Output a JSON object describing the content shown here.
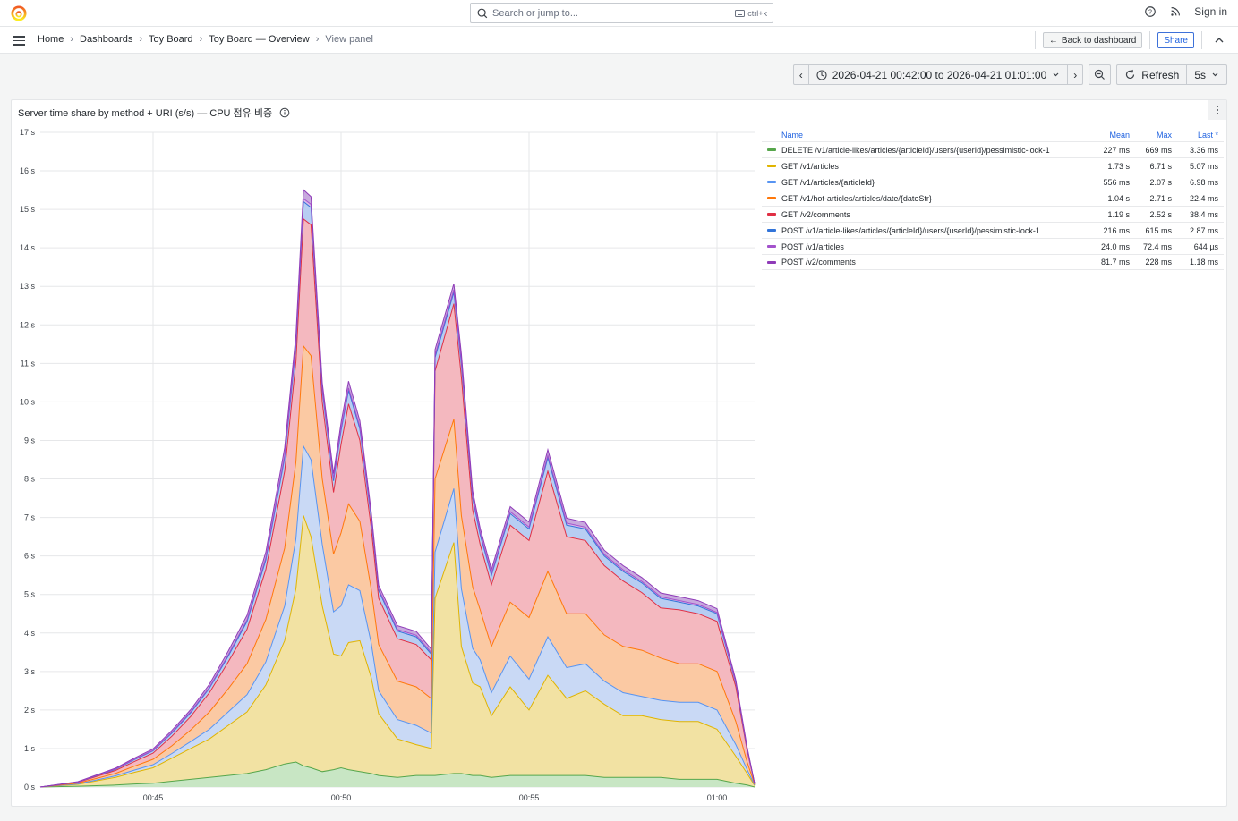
{
  "topbar": {
    "search_placeholder": "Search or jump to...",
    "search_shortcut": "ctrl+k",
    "sign_in": "Sign in"
  },
  "breadcrumbs": [
    "Home",
    "Dashboards",
    "Toy Board",
    "Toy Board — Overview",
    "View panel"
  ],
  "nav": {
    "back_label": "Back to dashboard",
    "share_label": "Share"
  },
  "time_picker": {
    "range": "2026-04-21 00:42:00 to 2026-04-21 01:01:00",
    "refresh_label": "Refresh",
    "refresh_interval": "5s"
  },
  "panel": {
    "title": "Server time share by method + URI (s/s) — CPU 점유 비중"
  },
  "legend": {
    "headers": {
      "name": "Name",
      "mean": "Mean",
      "max": "Max",
      "last": "Last *"
    },
    "rows": [
      {
        "name": "DELETE /v1/article-likes/articles/{articleId}/users/{userId}/pessimistic-lock-1",
        "color": "#56a64b",
        "mean": "227 ms",
        "max": "669 ms",
        "last": "3.36 ms"
      },
      {
        "name": "GET /v1/articles",
        "color": "#e0b400",
        "mean": "1.73 s",
        "max": "6.71 s",
        "last": "5.07 ms"
      },
      {
        "name": "GET /v1/articles/{articleId}",
        "color": "#5794f2",
        "mean": "556 ms",
        "max": "2.07 s",
        "last": "6.98 ms"
      },
      {
        "name": "GET /v1/hot-articles/articles/date/{dateStr}",
        "color": "#ff780a",
        "mean": "1.04 s",
        "max": "2.71 s",
        "last": "22.4 ms"
      },
      {
        "name": "GET /v2/comments",
        "color": "#e02f44",
        "mean": "1.19 s",
        "max": "2.52 s",
        "last": "38.4 ms"
      },
      {
        "name": "POST /v1/article-likes/articles/{articleId}/users/{userId}/pessimistic-lock-1",
        "color": "#3274d9",
        "mean": "216 ms",
        "max": "615 ms",
        "last": "2.87 ms"
      },
      {
        "name": "POST /v1/articles",
        "color": "#a352cc",
        "mean": "24.0 ms",
        "max": "72.4 ms",
        "last": "644 µs"
      },
      {
        "name": "POST /v2/comments",
        "color": "#8f3bb8",
        "mean": "81.7 ms",
        "max": "228 ms",
        "last": "1.18 ms"
      }
    ]
  },
  "chart_data": {
    "type": "area",
    "stacked": true,
    "x_unit": "minutes since 00:42",
    "xlim": [
      0,
      19
    ],
    "ylim": [
      0,
      17
    ],
    "yticks": [
      0,
      1,
      2,
      3,
      4,
      5,
      6,
      7,
      8,
      9,
      10,
      11,
      12,
      13,
      14,
      15,
      16,
      17
    ],
    "ytick_labels": [
      "0 s",
      "1 s",
      "2 s",
      "3 s",
      "4 s",
      "5 s",
      "6 s",
      "7 s",
      "8 s",
      "9 s",
      "10 s",
      "11 s",
      "12 s",
      "13 s",
      "14 s",
      "15 s",
      "16 s",
      "17 s"
    ],
    "xticks": [
      3,
      8,
      13,
      18
    ],
    "xtick_labels": [
      "00:45",
      "00:50",
      "00:55",
      "01:00"
    ],
    "grid": true,
    "legend_position": "right",
    "x": [
      0,
      1,
      2,
      2.5,
      3,
      3.5,
      4,
      4.5,
      5,
      5.5,
      6,
      6.5,
      6.8,
      7,
      7.2,
      7.5,
      7.8,
      8,
      8.2,
      8.5,
      8.8,
      9,
      9.5,
      10,
      10.4,
      10.5,
      11,
      11.2,
      11.5,
      11.7,
      12,
      12.5,
      13,
      13.5,
      14,
      14.5,
      15,
      15.5,
      16,
      16.5,
      17,
      17.5,
      18,
      18.5,
      18.8,
      19
    ],
    "series": [
      {
        "name": "DELETE /v1/article-likes/articles/{articleId}/users/{userId}/pessimistic-lock-1",
        "values": [
          0,
          0.02,
          0.05,
          0.08,
          0.1,
          0.15,
          0.2,
          0.25,
          0.3,
          0.35,
          0.45,
          0.6,
          0.65,
          0.55,
          0.5,
          0.4,
          0.45,
          0.5,
          0.45,
          0.4,
          0.35,
          0.3,
          0.25,
          0.3,
          0.3,
          0.3,
          0.35,
          0.35,
          0.3,
          0.3,
          0.25,
          0.3,
          0.3,
          0.3,
          0.3,
          0.3,
          0.25,
          0.25,
          0.25,
          0.25,
          0.2,
          0.2,
          0.2,
          0.1,
          0.05,
          0
        ]
      },
      {
        "name": "GET /v1/articles",
        "values": [
          0,
          0.05,
          0.2,
          0.3,
          0.4,
          0.6,
          0.8,
          1,
          1.3,
          1.6,
          2.2,
          3.2,
          4.5,
          6.5,
          6,
          4.3,
          3,
          2.9,
          3.3,
          3.4,
          2.5,
          1.6,
          1,
          0.8,
          0.7,
          4.6,
          6,
          3.3,
          2.4,
          2.3,
          1.6,
          2.3,
          1.7,
          2.6,
          2,
          2.2,
          1.9,
          1.6,
          1.6,
          1.5,
          1.5,
          1.5,
          1.3,
          0.7,
          0.3,
          0.04
        ]
      },
      {
        "name": "GET /v1/articles/{articleId}",
        "values": [
          0,
          0.01,
          0.04,
          0.06,
          0.08,
          0.12,
          0.18,
          0.25,
          0.35,
          0.45,
          0.6,
          0.9,
          1.3,
          1.8,
          2,
          1.6,
          1.1,
          1.3,
          1.5,
          1.3,
          0.9,
          0.6,
          0.5,
          0.5,
          0.4,
          1.2,
          1.4,
          1.5,
          0.9,
          0.7,
          0.6,
          0.8,
          0.8,
          1,
          0.8,
          0.7,
          0.6,
          0.6,
          0.5,
          0.5,
          0.5,
          0.5,
          0.5,
          0.3,
          0.1,
          0.01
        ]
      },
      {
        "name": "GET /v1/hot-articles/articles/date/{dateStr}",
        "values": [
          0,
          0.02,
          0.06,
          0.1,
          0.14,
          0.2,
          0.3,
          0.45,
          0.6,
          0.8,
          1.1,
          1.5,
          2,
          2.6,
          2.7,
          1.7,
          1.5,
          1.9,
          2.1,
          1.8,
          1.4,
          1.2,
          1,
          1,
          0.9,
          1.9,
          1.8,
          1.9,
          1.6,
          1.3,
          1.2,
          1.4,
          1.6,
          1.7,
          1.4,
          1.3,
          1.2,
          1.2,
          1.2,
          1.1,
          1,
          1,
          1,
          0.6,
          0.2,
          0.02
        ]
      },
      {
        "name": "GET /v2/comments",
        "values": [
          0,
          0.02,
          0.08,
          0.12,
          0.16,
          0.25,
          0.35,
          0.5,
          0.7,
          0.9,
          1.3,
          2,
          2.6,
          3.3,
          3.4,
          2,
          1.6,
          2.3,
          2.6,
          2.1,
          1.6,
          1.2,
          1.1,
          1.1,
          1,
          2.8,
          3,
          3.6,
          2,
          1.7,
          1.6,
          2,
          2,
          2.6,
          2,
          1.9,
          1.8,
          1.7,
          1.5,
          1.3,
          1.4,
          1.3,
          1.3,
          0.9,
          0.3,
          0.02
        ]
      },
      {
        "name": "POST /v1/article-likes/articles/{articleId}/users/{userId}/pessimistic-lock-1",
        "values": [
          0,
          0.01,
          0.03,
          0.05,
          0.06,
          0.08,
          0.1,
          0.12,
          0.15,
          0.2,
          0.25,
          0.35,
          0.4,
          0.45,
          0.45,
          0.3,
          0.3,
          0.35,
          0.35,
          0.3,
          0.25,
          0.2,
          0.2,
          0.2,
          0.15,
          0.35,
          0.3,
          0.35,
          0.3,
          0.25,
          0.25,
          0.3,
          0.3,
          0.35,
          0.3,
          0.3,
          0.25,
          0.25,
          0.25,
          0.25,
          0.2,
          0.2,
          0.2,
          0.1,
          0.05,
          0
        ]
      },
      {
        "name": "POST /v1/articles",
        "values": [
          0,
          0,
          0.01,
          0.01,
          0.01,
          0.02,
          0.02,
          0.02,
          0.03,
          0.04,
          0.05,
          0.06,
          0.07,
          0.08,
          0.08,
          0.05,
          0.05,
          0.05,
          0.06,
          0.05,
          0.05,
          0.04,
          0.04,
          0.04,
          0.04,
          0.06,
          0.06,
          0.07,
          0.05,
          0.05,
          0.04,
          0.05,
          0.05,
          0.06,
          0.05,
          0.05,
          0.04,
          0.04,
          0.04,
          0.04,
          0.04,
          0.04,
          0.03,
          0.02,
          0.01,
          0
        ]
      },
      {
        "name": "POST /v2/comments",
        "values": [
          0,
          0.01,
          0.02,
          0.03,
          0.04,
          0.05,
          0.06,
          0.08,
          0.1,
          0.12,
          0.15,
          0.2,
          0.22,
          0.23,
          0.2,
          0.15,
          0.14,
          0.16,
          0.18,
          0.16,
          0.12,
          0.1,
          0.1,
          0.1,
          0.09,
          0.15,
          0.16,
          0.18,
          0.14,
          0.12,
          0.11,
          0.13,
          0.13,
          0.15,
          0.13,
          0.12,
          0.11,
          0.11,
          0.1,
          0.1,
          0.1,
          0.1,
          0.1,
          0.06,
          0.03,
          0
        ]
      }
    ]
  }
}
